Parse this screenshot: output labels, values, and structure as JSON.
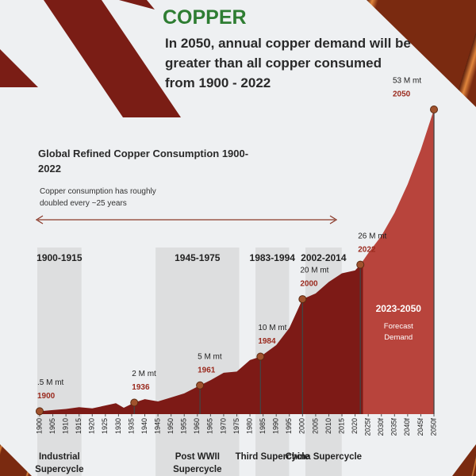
{
  "header": {
    "title": "COPPER",
    "subtitle": "In 2050, annual copper demand will be greater than all copper consumed from 1900 - 2022"
  },
  "chart_data": {
    "type": "area",
    "title": "Global Refined Copper Consumption 1900-2022",
    "note": "Copper consumption has roughly doubled every ~25 years",
    "color": "#7d1a16",
    "x": [
      1900,
      1905,
      1910,
      1915,
      1920,
      1925,
      1929,
      1932,
      1936,
      1940,
      1945,
      1950,
      1955,
      1961,
      1965,
      1970,
      1975,
      1980,
      1984,
      1990,
      1995,
      2000,
      2005,
      2010,
      2015,
      2020,
      2022,
      2025,
      2030,
      2035,
      2040,
      2045,
      2050
    ],
    "values": [
      0.5,
      0.7,
      0.9,
      1.2,
      1.0,
      1.5,
      1.9,
      1.1,
      2,
      2.6,
      2.2,
      2.9,
      3.6,
      5,
      5.9,
      7.2,
      7.4,
      9.4,
      10,
      12,
      15,
      20,
      21,
      23,
      24.5,
      25,
      26,
      28,
      31,
      35,
      40,
      46,
      53
    ],
    "xticks": [
      1900,
      1905,
      1910,
      1915,
      1920,
      1925,
      1930,
      1935,
      1940,
      1945,
      1950,
      1955,
      1960,
      1965,
      1970,
      1975,
      1980,
      1985,
      1990,
      1995,
      2000,
      2005,
      2010,
      2015,
      2020,
      {
        "value": 2025,
        "label": "2025f"
      },
      {
        "value": 2030,
        "label": "2030f"
      },
      {
        "value": 2035,
        "label": "2035f"
      },
      {
        "value": 2040,
        "label": "2040f"
      },
      {
        "value": 2045,
        "label": "2045f"
      },
      {
        "value": 2050,
        "label": "2050f"
      }
    ],
    "annotations": [
      {
        "x": 1900,
        "value": 0.5,
        "label": ".5 M mt"
      },
      {
        "x": 1936,
        "value": 2,
        "label": "2 M mt"
      },
      {
        "x": 1961,
        "value": 5,
        "label": "5 M mt"
      },
      {
        "x": 1984,
        "value": 10,
        "label": "10 M mt"
      },
      {
        "x": 2000,
        "value": 20,
        "label": "20 M mt"
      },
      {
        "x": 2022,
        "value": 26,
        "label": "26 M mt"
      },
      {
        "x": 2050,
        "value": 53,
        "label": "53 M mt"
      }
    ],
    "bands": [
      {
        "start": 1900,
        "end": 1915,
        "label": "1900-1915",
        "name": "Industrial Supercycle"
      },
      {
        "start": 1945,
        "end": 1975,
        "label": "1945-1975",
        "name": "Post WWII Supercycle"
      },
      {
        "start": 1983,
        "end": 1994,
        "label": "1983-1994",
        "name": "Third Supercycle"
      },
      {
        "start": 2002,
        "end": 2014,
        "label": "2002-2014",
        "name": "China Supercycle"
      }
    ],
    "forecast": {
      "start": 2023,
      "end": 2050,
      "label": "2023-2050",
      "text": "Forecast Demand",
      "color": "#b8443c"
    }
  }
}
